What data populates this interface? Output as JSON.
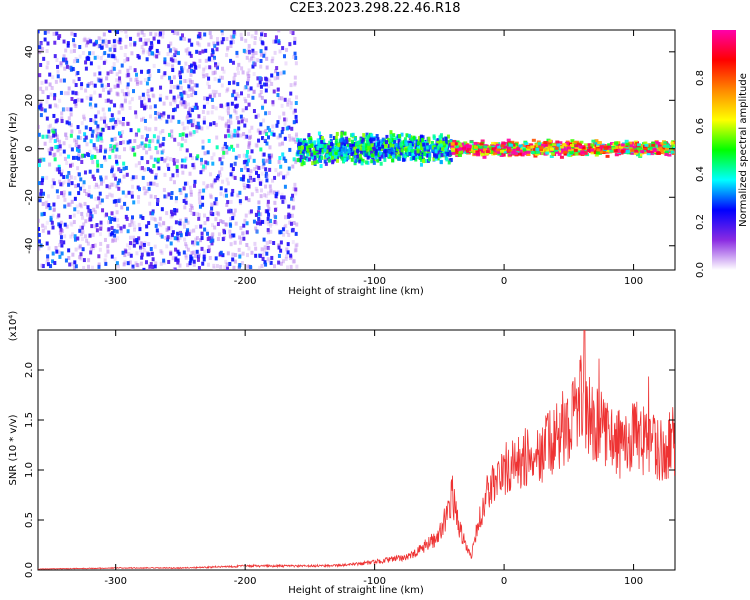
{
  "title": "C2E3.2023.298.22.46.R18",
  "chart_data": [
    {
      "type": "heatmap",
      "xlabel": "Height of straight line (km)",
      "ylabel": "Frequency (Hz)",
      "xlim": [
        -360,
        132
      ],
      "ylim": [
        -50,
        49
      ],
      "xticks": [
        -300,
        -200,
        -100,
        0,
        100
      ],
      "yticks": [
        -40,
        -20,
        0,
        20,
        40
      ],
      "colorbar": {
        "label": "Normalized spectral amplitude",
        "range": [
          0.0,
          1.0
        ],
        "ticks": [
          0.0,
          0.2,
          0.4,
          0.6,
          0.8
        ],
        "colormap": [
          "#ffffff",
          "#8a2be2",
          "#0000ff",
          "#00ffff",
          "#00ff00",
          "#ffff00",
          "#ff8800",
          "#ff0000",
          "#ff00aa"
        ]
      },
      "description_regions": [
        {
          "x": [
            -360,
            -160
          ],
          "freq": [
            -50,
            49
          ],
          "amplitude": 0.25
        },
        {
          "x": [
            -160,
            -40
          ],
          "freq": [
            -8,
            8
          ],
          "amplitude": 0.45
        },
        {
          "x": [
            -40,
            132
          ],
          "freq": [
            -4,
            4
          ],
          "amplitude": 0.85
        }
      ]
    },
    {
      "type": "line",
      "xlabel": "Height of straight line (km)",
      "ylabel": "SNR (10 * v/v)",
      "ymultiplier": "(x10⁴)",
      "xlim": [
        -360,
        132
      ],
      "ylim": [
        0.0,
        2.4
      ],
      "xticks": [
        -300,
        -200,
        -100,
        0,
        100
      ],
      "yticks": [
        0.0,
        0.5,
        1.0,
        1.5,
        2.0
      ],
      "series": [
        {
          "color": "#ee3333",
          "x": [
            -360,
            -300,
            -250,
            -200,
            -150,
            -120,
            -100,
            -80,
            -70,
            -60,
            -50,
            -45,
            -40,
            -35,
            -30,
            -25,
            -20,
            -15,
            -10,
            -5,
            0,
            10,
            20,
            30,
            40,
            50,
            60,
            70,
            80,
            90,
            100,
            110,
            120,
            132
          ],
          "y": [
            0.01,
            0.02,
            0.02,
            0.04,
            0.04,
            0.05,
            0.08,
            0.12,
            0.15,
            0.25,
            0.35,
            0.55,
            0.75,
            0.45,
            0.25,
            0.15,
            0.45,
            0.7,
            0.85,
            0.9,
            1.0,
            1.05,
            1.15,
            1.2,
            1.3,
            1.5,
            1.7,
            1.45,
            1.35,
            1.25,
            1.35,
            1.25,
            1.2,
            1.3
          ]
        }
      ]
    }
  ]
}
